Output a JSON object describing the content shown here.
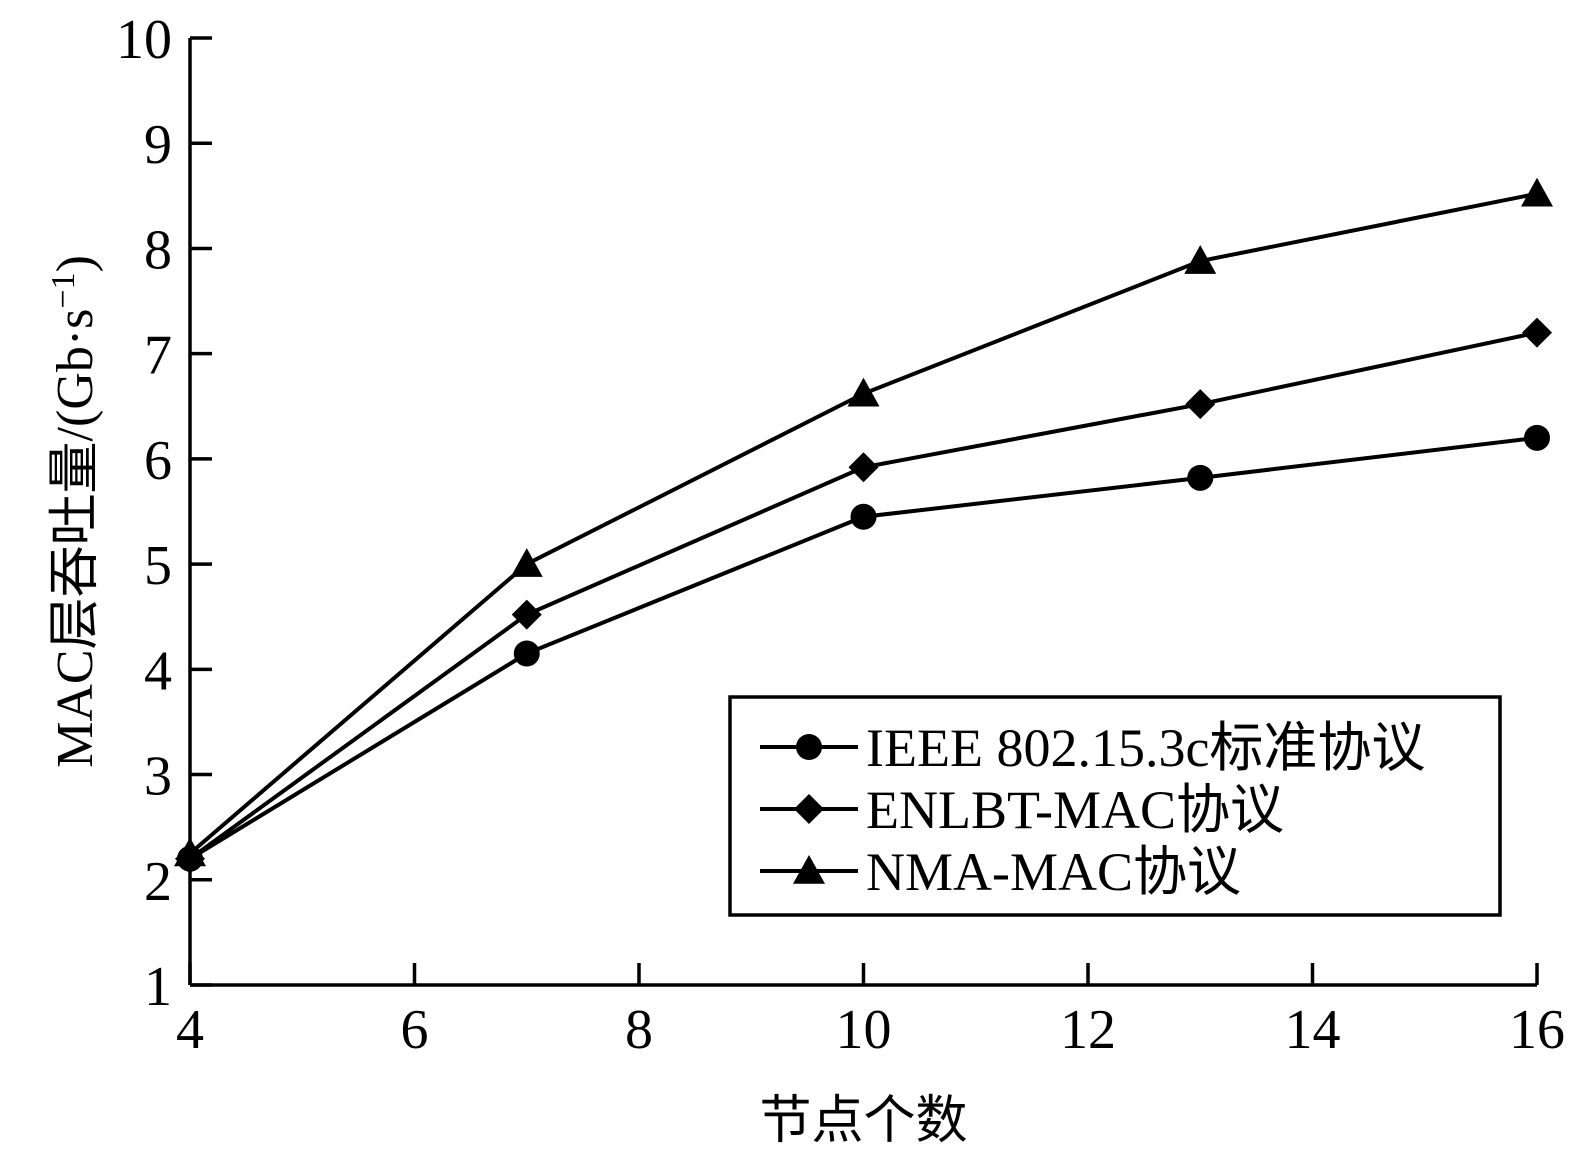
{
  "chart_data": {
    "type": "line",
    "title": "",
    "xlabel": "节点个数",
    "ylabel_main": "MAC层吞吐量/(Gb·s",
    "ylabel_sup": "−1",
    "ylabel_close": ")",
    "xlim": [
      4,
      16
    ],
    "ylim": [
      1,
      10
    ],
    "xticks": [
      4,
      6,
      8,
      10,
      12,
      14,
      16
    ],
    "yticks": [
      1,
      2,
      3,
      4,
      5,
      6,
      7,
      8,
      9,
      10
    ],
    "x": [
      4,
      7,
      10,
      13,
      16
    ],
    "grid": false,
    "legend_position": "bottom-right",
    "line_color": "#000000",
    "series": [
      {
        "name": "IEEE 802.15.3c标准协议",
        "marker": "circle",
        "values": [
          2.2,
          4.15,
          5.45,
          5.82,
          6.2
        ]
      },
      {
        "name": "ENLBT-MAC协议",
        "marker": "diamond",
        "values": [
          2.2,
          4.52,
          5.92,
          6.52,
          7.2
        ]
      },
      {
        "name": "NMA-MAC协议",
        "marker": "triangle",
        "values": [
          2.25,
          5.0,
          6.62,
          7.88,
          8.52
        ]
      }
    ]
  }
}
